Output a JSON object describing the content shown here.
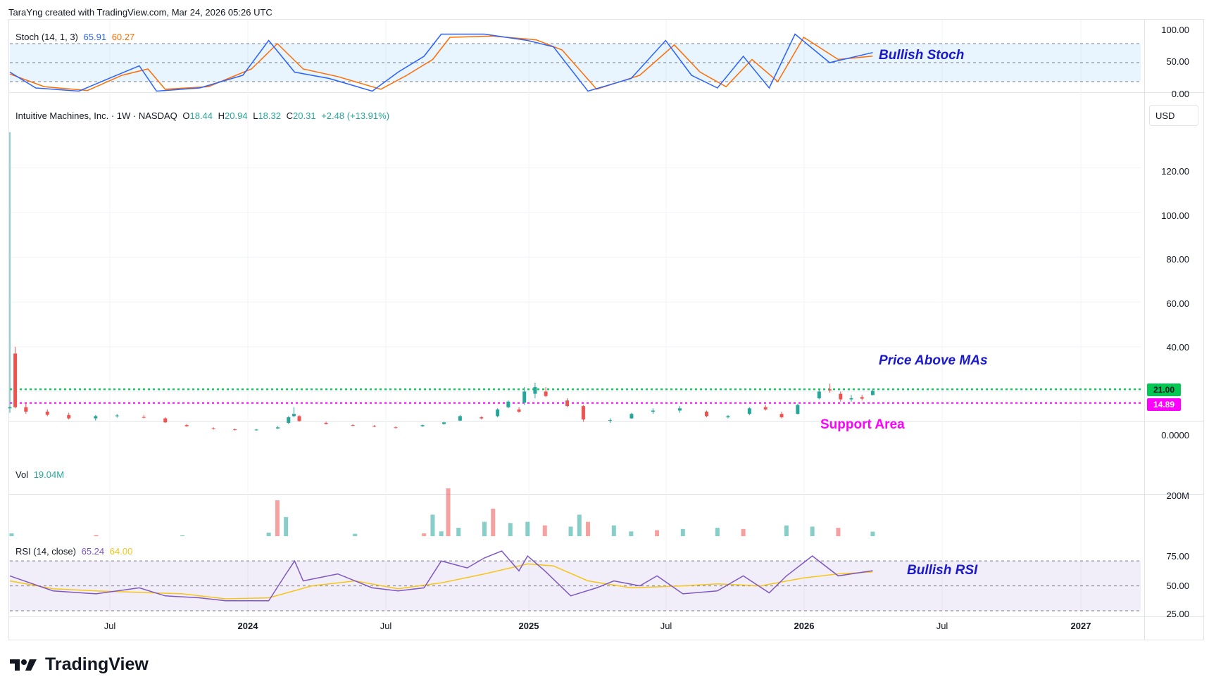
{
  "header": {
    "attribution": "TaraYng created with TradingView.com, Mar 24, 2026 05:26 UTC"
  },
  "brand": {
    "name": "TradingView"
  },
  "stoch": {
    "label": "Stoch (14, 1, 3)",
    "k_value": "65.91",
    "d_value": "60.27",
    "k_color": "#2962ff",
    "d_color": "#ff6d00",
    "ticks": [
      "100.00",
      "50.00",
      "0.00"
    ],
    "annotation": "Bullish Stoch"
  },
  "price": {
    "symbol": "Intuitive Machines, Inc. · 1W · NASDAQ",
    "o_label": "O",
    "o": "18.44",
    "h_label": "H",
    "h": "20.94",
    "l_label": "L",
    "l": "18.32",
    "c_label": "C",
    "c": "20.31",
    "change": "+2.48 (+13.91%)",
    "ticks": [
      "120.00",
      "100.00",
      "80.00",
      "60.00",
      "40.00",
      "0.0000"
    ],
    "last_price": "21.00",
    "support_price": "14.89",
    "currency": "USD",
    "annotation_mas": "Price Above MAs",
    "annotation_support": "Support Area",
    "up_color": "#26a69a",
    "down_color": "#ef5350",
    "line_color": "#00c853",
    "support_color": "#ff00ff"
  },
  "volume": {
    "label": "Vol",
    "value": "19.04M",
    "ticks": [
      "200M"
    ]
  },
  "rsi": {
    "label": "RSI (14, close)",
    "value": "65.24",
    "ma_value": "64.00",
    "rsi_color": "#7e57c2",
    "ma_color": "#f5c518",
    "ticks": [
      "75.00",
      "50.00",
      "25.00"
    ],
    "annotation": "Bullish RSI"
  },
  "time_axis": [
    {
      "label": "Jul",
      "bold": false
    },
    {
      "label": "2024",
      "bold": true
    },
    {
      "label": "Jul",
      "bold": false
    },
    {
      "label": "2025",
      "bold": true
    },
    {
      "label": "Jul",
      "bold": false
    },
    {
      "label": "2026",
      "bold": true
    },
    {
      "label": "Jul",
      "bold": false
    },
    {
      "label": "2027",
      "bold": false
    }
  ],
  "chart_data": {
    "type": "candlestick",
    "interval": "1W",
    "title": "Intuitive Machines, Inc. · 1W · NASDAQ",
    "x_range": [
      "2023-02-13",
      "2027-03-01"
    ],
    "ylim": [
      0,
      140
    ],
    "price_points": [
      {
        "date": "2023-02-13",
        "o": 12.5,
        "h": 136.0,
        "l": 10.5,
        "c": 13.0
      },
      {
        "date": "2023-02-20",
        "o": 37.0,
        "h": 40.0,
        "l": 12.5,
        "c": 13.0
      },
      {
        "date": "2023-03-06",
        "o": 13.0,
        "h": 15.0,
        "l": 10.0,
        "c": 11.0
      },
      {
        "date": "2023-04-03",
        "o": 11.0,
        "h": 12.0,
        "l": 9.0,
        "c": 9.6
      },
      {
        "date": "2023-05-01",
        "o": 9.5,
        "h": 10.5,
        "l": 7.5,
        "c": 8.0
      },
      {
        "date": "2023-06-05",
        "o": 8.0,
        "h": 9.5,
        "l": 7.0,
        "c": 9.0
      },
      {
        "date": "2023-07-03",
        "o": 9.2,
        "h": 10.0,
        "l": 8.3,
        "c": 9.3
      },
      {
        "date": "2023-08-07",
        "o": 8.6,
        "h": 9.5,
        "l": 8.0,
        "c": 8.5
      },
      {
        "date": "2023-09-04",
        "o": 8.0,
        "h": 8.5,
        "l": 6.0,
        "c": 6.2
      },
      {
        "date": "2023-10-02",
        "o": 5.0,
        "h": 5.5,
        "l": 4.2,
        "c": 4.5
      },
      {
        "date": "2023-11-06",
        "o": 3.5,
        "h": 4.0,
        "l": 3.0,
        "c": 3.3
      },
      {
        "date": "2023-12-04",
        "o": 3.1,
        "h": 3.5,
        "l": 2.6,
        "c": 2.8
      },
      {
        "date": "2024-01-01",
        "o": 2.9,
        "h": 3.3,
        "l": 2.5,
        "c": 3.0
      },
      {
        "date": "2024-01-29",
        "o": 3.5,
        "h": 4.5,
        "l": 3.3,
        "c": 4.0
      },
      {
        "date": "2024-02-12",
        "o": 6.0,
        "h": 9.0,
        "l": 5.5,
        "c": 8.5
      },
      {
        "date": "2024-02-19",
        "o": 9.0,
        "h": 13.0,
        "l": 8.5,
        "c": 10.0
      },
      {
        "date": "2024-02-26",
        "o": 9.0,
        "h": 9.5,
        "l": 6.5,
        "c": 6.8
      },
      {
        "date": "2024-04-01",
        "o": 6.0,
        "h": 6.5,
        "l": 5.3,
        "c": 5.5
      },
      {
        "date": "2024-05-06",
        "o": 5.0,
        "h": 5.4,
        "l": 4.5,
        "c": 4.7
      },
      {
        "date": "2024-06-03",
        "o": 4.6,
        "h": 5.0,
        "l": 4.1,
        "c": 4.3
      },
      {
        "date": "2024-07-01",
        "o": 4.0,
        "h": 4.4,
        "l": 3.5,
        "c": 3.8
      },
      {
        "date": "2024-08-05",
        "o": 4.5,
        "h": 5.2,
        "l": 4.2,
        "c": 5.0
      },
      {
        "date": "2024-09-02",
        "o": 5.5,
        "h": 6.5,
        "l": 5.2,
        "c": 6.2
      },
      {
        "date": "2024-09-23",
        "o": 7.0,
        "h": 9.5,
        "l": 6.8,
        "c": 9.0
      },
      {
        "date": "2024-10-21",
        "o": 8.5,
        "h": 9.0,
        "l": 7.5,
        "c": 8.0
      },
      {
        "date": "2024-11-11",
        "o": 9.0,
        "h": 12.5,
        "l": 8.5,
        "c": 12.0
      },
      {
        "date": "2024-11-25",
        "o": 13.0,
        "h": 16.0,
        "l": 12.5,
        "c": 15.5
      },
      {
        "date": "2024-12-09",
        "o": 12.0,
        "h": 13.0,
        "l": 10.5,
        "c": 11.0
      },
      {
        "date": "2024-12-16",
        "o": 15.0,
        "h": 22.0,
        "l": 14.0,
        "c": 20.0
      },
      {
        "date": "2024-12-30",
        "o": 19.0,
        "h": 24.0,
        "l": 17.0,
        "c": 22.0
      },
      {
        "date": "2025-01-13",
        "o": 20.0,
        "h": 22.0,
        "l": 17.5,
        "c": 18.0
      },
      {
        "date": "2025-02-10",
        "o": 16.0,
        "h": 17.0,
        "l": 13.0,
        "c": 13.5
      },
      {
        "date": "2025-03-03",
        "o": 13.5,
        "h": 14.0,
        "l": 6.5,
        "c": 7.5
      },
      {
        "date": "2025-04-07",
        "o": 7.0,
        "h": 8.0,
        "l": 6.0,
        "c": 7.2
      },
      {
        "date": "2025-05-05",
        "o": 8.0,
        "h": 10.5,
        "l": 7.8,
        "c": 10.0
      },
      {
        "date": "2025-06-02",
        "o": 11.0,
        "h": 12.5,
        "l": 10.0,
        "c": 11.5
      },
      {
        "date": "2025-07-07",
        "o": 11.5,
        "h": 13.5,
        "l": 10.5,
        "c": 12.5
      },
      {
        "date": "2025-08-11",
        "o": 11.0,
        "h": 11.5,
        "l": 8.5,
        "c": 9.0
      },
      {
        "date": "2025-09-08",
        "o": 8.5,
        "h": 9.5,
        "l": 8.0,
        "c": 9.0
      },
      {
        "date": "2025-10-06",
        "o": 10.0,
        "h": 13.0,
        "l": 9.5,
        "c": 12.5
      },
      {
        "date": "2025-10-27",
        "o": 13.0,
        "h": 14.0,
        "l": 11.5,
        "c": 12.0
      },
      {
        "date": "2025-11-17",
        "o": 10.0,
        "h": 11.0,
        "l": 8.0,
        "c": 8.5
      },
      {
        "date": "2025-12-08",
        "o": 10.0,
        "h": 14.5,
        "l": 9.8,
        "c": 14.0
      },
      {
        "date": "2026-01-05",
        "o": 17.0,
        "h": 21.0,
        "l": 16.5,
        "c": 20.0
      },
      {
        "date": "2026-01-19",
        "o": 21.0,
        "h": 23.5,
        "l": 19.5,
        "c": 20.5
      },
      {
        "date": "2026-02-02",
        "o": 19.0,
        "h": 20.0,
        "l": 15.5,
        "c": 16.5
      },
      {
        "date": "2026-02-16",
        "o": 16.5,
        "h": 18.5,
        "l": 15.5,
        "c": 17.0
      },
      {
        "date": "2026-03-02",
        "o": 17.5,
        "h": 18.5,
        "l": 16.0,
        "c": 16.8
      },
      {
        "date": "2026-03-16",
        "o": 18.44,
        "h": 20.94,
        "l": 18.32,
        "c": 20.31
      }
    ],
    "horizontal_levels": [
      {
        "value": 21.0,
        "label": "21.00"
      },
      {
        "value": 14.89,
        "label": "14.89"
      }
    ],
    "stochastic": {
      "ylim": [
        0,
        100
      ],
      "bands": [
        80,
        50,
        20
      ],
      "k": [
        [
          0,
          35
        ],
        [
          0.03,
          10
        ],
        [
          0.08,
          5
        ],
        [
          0.12,
          28
        ],
        [
          0.15,
          45
        ],
        [
          0.17,
          5
        ],
        [
          0.22,
          10
        ],
        [
          0.27,
          30
        ],
        [
          0.3,
          85
        ],
        [
          0.33,
          35
        ],
        [
          0.37,
          25
        ],
        [
          0.42,
          5
        ],
        [
          0.45,
          35
        ],
        [
          0.48,
          60
        ],
        [
          0.5,
          95
        ],
        [
          0.55,
          95
        ],
        [
          0.6,
          85
        ],
        [
          0.63,
          75
        ],
        [
          0.67,
          5
        ],
        [
          0.72,
          25
        ],
        [
          0.76,
          85
        ],
        [
          0.79,
          30
        ],
        [
          0.82,
          10
        ],
        [
          0.85,
          60
        ],
        [
          0.88,
          10
        ],
        [
          0.91,
          95
        ],
        [
          0.95,
          50
        ],
        [
          1,
          65.91
        ]
      ],
      "d": [
        [
          0,
          32
        ],
        [
          0.04,
          12
        ],
        [
          0.09,
          6
        ],
        [
          0.13,
          30
        ],
        [
          0.16,
          40
        ],
        [
          0.18,
          8
        ],
        [
          0.23,
          12
        ],
        [
          0.28,
          40
        ],
        [
          0.31,
          80
        ],
        [
          0.34,
          40
        ],
        [
          0.38,
          28
        ],
        [
          0.43,
          8
        ],
        [
          0.46,
          30
        ],
        [
          0.49,
          55
        ],
        [
          0.51,
          90
        ],
        [
          0.56,
          92
        ],
        [
          0.61,
          86
        ],
        [
          0.64,
          70
        ],
        [
          0.68,
          8
        ],
        [
          0.73,
          30
        ],
        [
          0.77,
          78
        ],
        [
          0.8,
          35
        ],
        [
          0.83,
          12
        ],
        [
          0.86,
          55
        ],
        [
          0.89,
          20
        ],
        [
          0.92,
          90
        ],
        [
          0.96,
          55
        ],
        [
          1,
          60.27
        ]
      ]
    },
    "volume": {
      "ylim": [
        0,
        300
      ],
      "bars": [
        [
          0.002,
          12
        ],
        [
          0.1,
          5
        ],
        [
          0.2,
          4
        ],
        [
          0.3,
          15
        ],
        [
          0.31,
          150
        ],
        [
          0.32,
          80
        ],
        [
          0.4,
          10
        ],
        [
          0.48,
          12
        ],
        [
          0.49,
          90
        ],
        [
          0.5,
          20
        ],
        [
          0.508,
          200
        ],
        [
          0.52,
          35
        ],
        [
          0.55,
          60
        ],
        [
          0.56,
          115
        ],
        [
          0.58,
          55
        ],
        [
          0.6,
          60
        ],
        [
          0.62,
          45
        ],
        [
          0.65,
          40
        ],
        [
          0.66,
          90
        ],
        [
          0.67,
          60
        ],
        [
          0.7,
          45
        ],
        [
          0.72,
          20
        ],
        [
          0.75,
          25
        ],
        [
          0.78,
          30
        ],
        [
          0.82,
          35
        ],
        [
          0.85,
          30
        ],
        [
          0.9,
          45
        ],
        [
          0.93,
          40
        ],
        [
          0.96,
          35
        ],
        [
          1,
          19.04
        ]
      ]
    },
    "rsi": {
      "ylim": [
        25,
        85
      ],
      "bands": [
        75,
        50,
        25
      ],
      "rsi": [
        [
          0,
          60
        ],
        [
          0.05,
          45
        ],
        [
          0.1,
          42
        ],
        [
          0.15,
          48
        ],
        [
          0.18,
          40
        ],
        [
          0.22,
          38
        ],
        [
          0.25,
          35
        ],
        [
          0.3,
          35
        ],
        [
          0.32,
          62
        ],
        [
          0.33,
          75
        ],
        [
          0.34,
          55
        ],
        [
          0.38,
          62
        ],
        [
          0.42,
          48
        ],
        [
          0.45,
          45
        ],
        [
          0.48,
          48
        ],
        [
          0.5,
          75
        ],
        [
          0.53,
          68
        ],
        [
          0.55,
          78
        ],
        [
          0.57,
          85
        ],
        [
          0.59,
          65
        ],
        [
          0.6,
          80
        ],
        [
          0.62,
          65
        ],
        [
          0.65,
          40
        ],
        [
          0.68,
          48
        ],
        [
          0.7,
          55
        ],
        [
          0.73,
          50
        ],
        [
          0.75,
          60
        ],
        [
          0.78,
          42
        ],
        [
          0.82,
          45
        ],
        [
          0.85,
          60
        ],
        [
          0.88,
          43
        ],
        [
          0.9,
          60
        ],
        [
          0.93,
          80
        ],
        [
          0.96,
          60
        ],
        [
          1,
          65.24
        ]
      ],
      "ma": [
        [
          0,
          55
        ],
        [
          0.05,
          47
        ],
        [
          0.1,
          45
        ],
        [
          0.2,
          42
        ],
        [
          0.25,
          37
        ],
        [
          0.3,
          38
        ],
        [
          0.35,
          50
        ],
        [
          0.4,
          55
        ],
        [
          0.45,
          47
        ],
        [
          0.5,
          53
        ],
        [
          0.55,
          62
        ],
        [
          0.6,
          72
        ],
        [
          0.63,
          70
        ],
        [
          0.67,
          55
        ],
        [
          0.72,
          48
        ],
        [
          0.78,
          50
        ],
        [
          0.82,
          52
        ],
        [
          0.87,
          50
        ],
        [
          0.92,
          58
        ],
        [
          0.96,
          62
        ],
        [
          1,
          64.0
        ]
      ]
    }
  }
}
